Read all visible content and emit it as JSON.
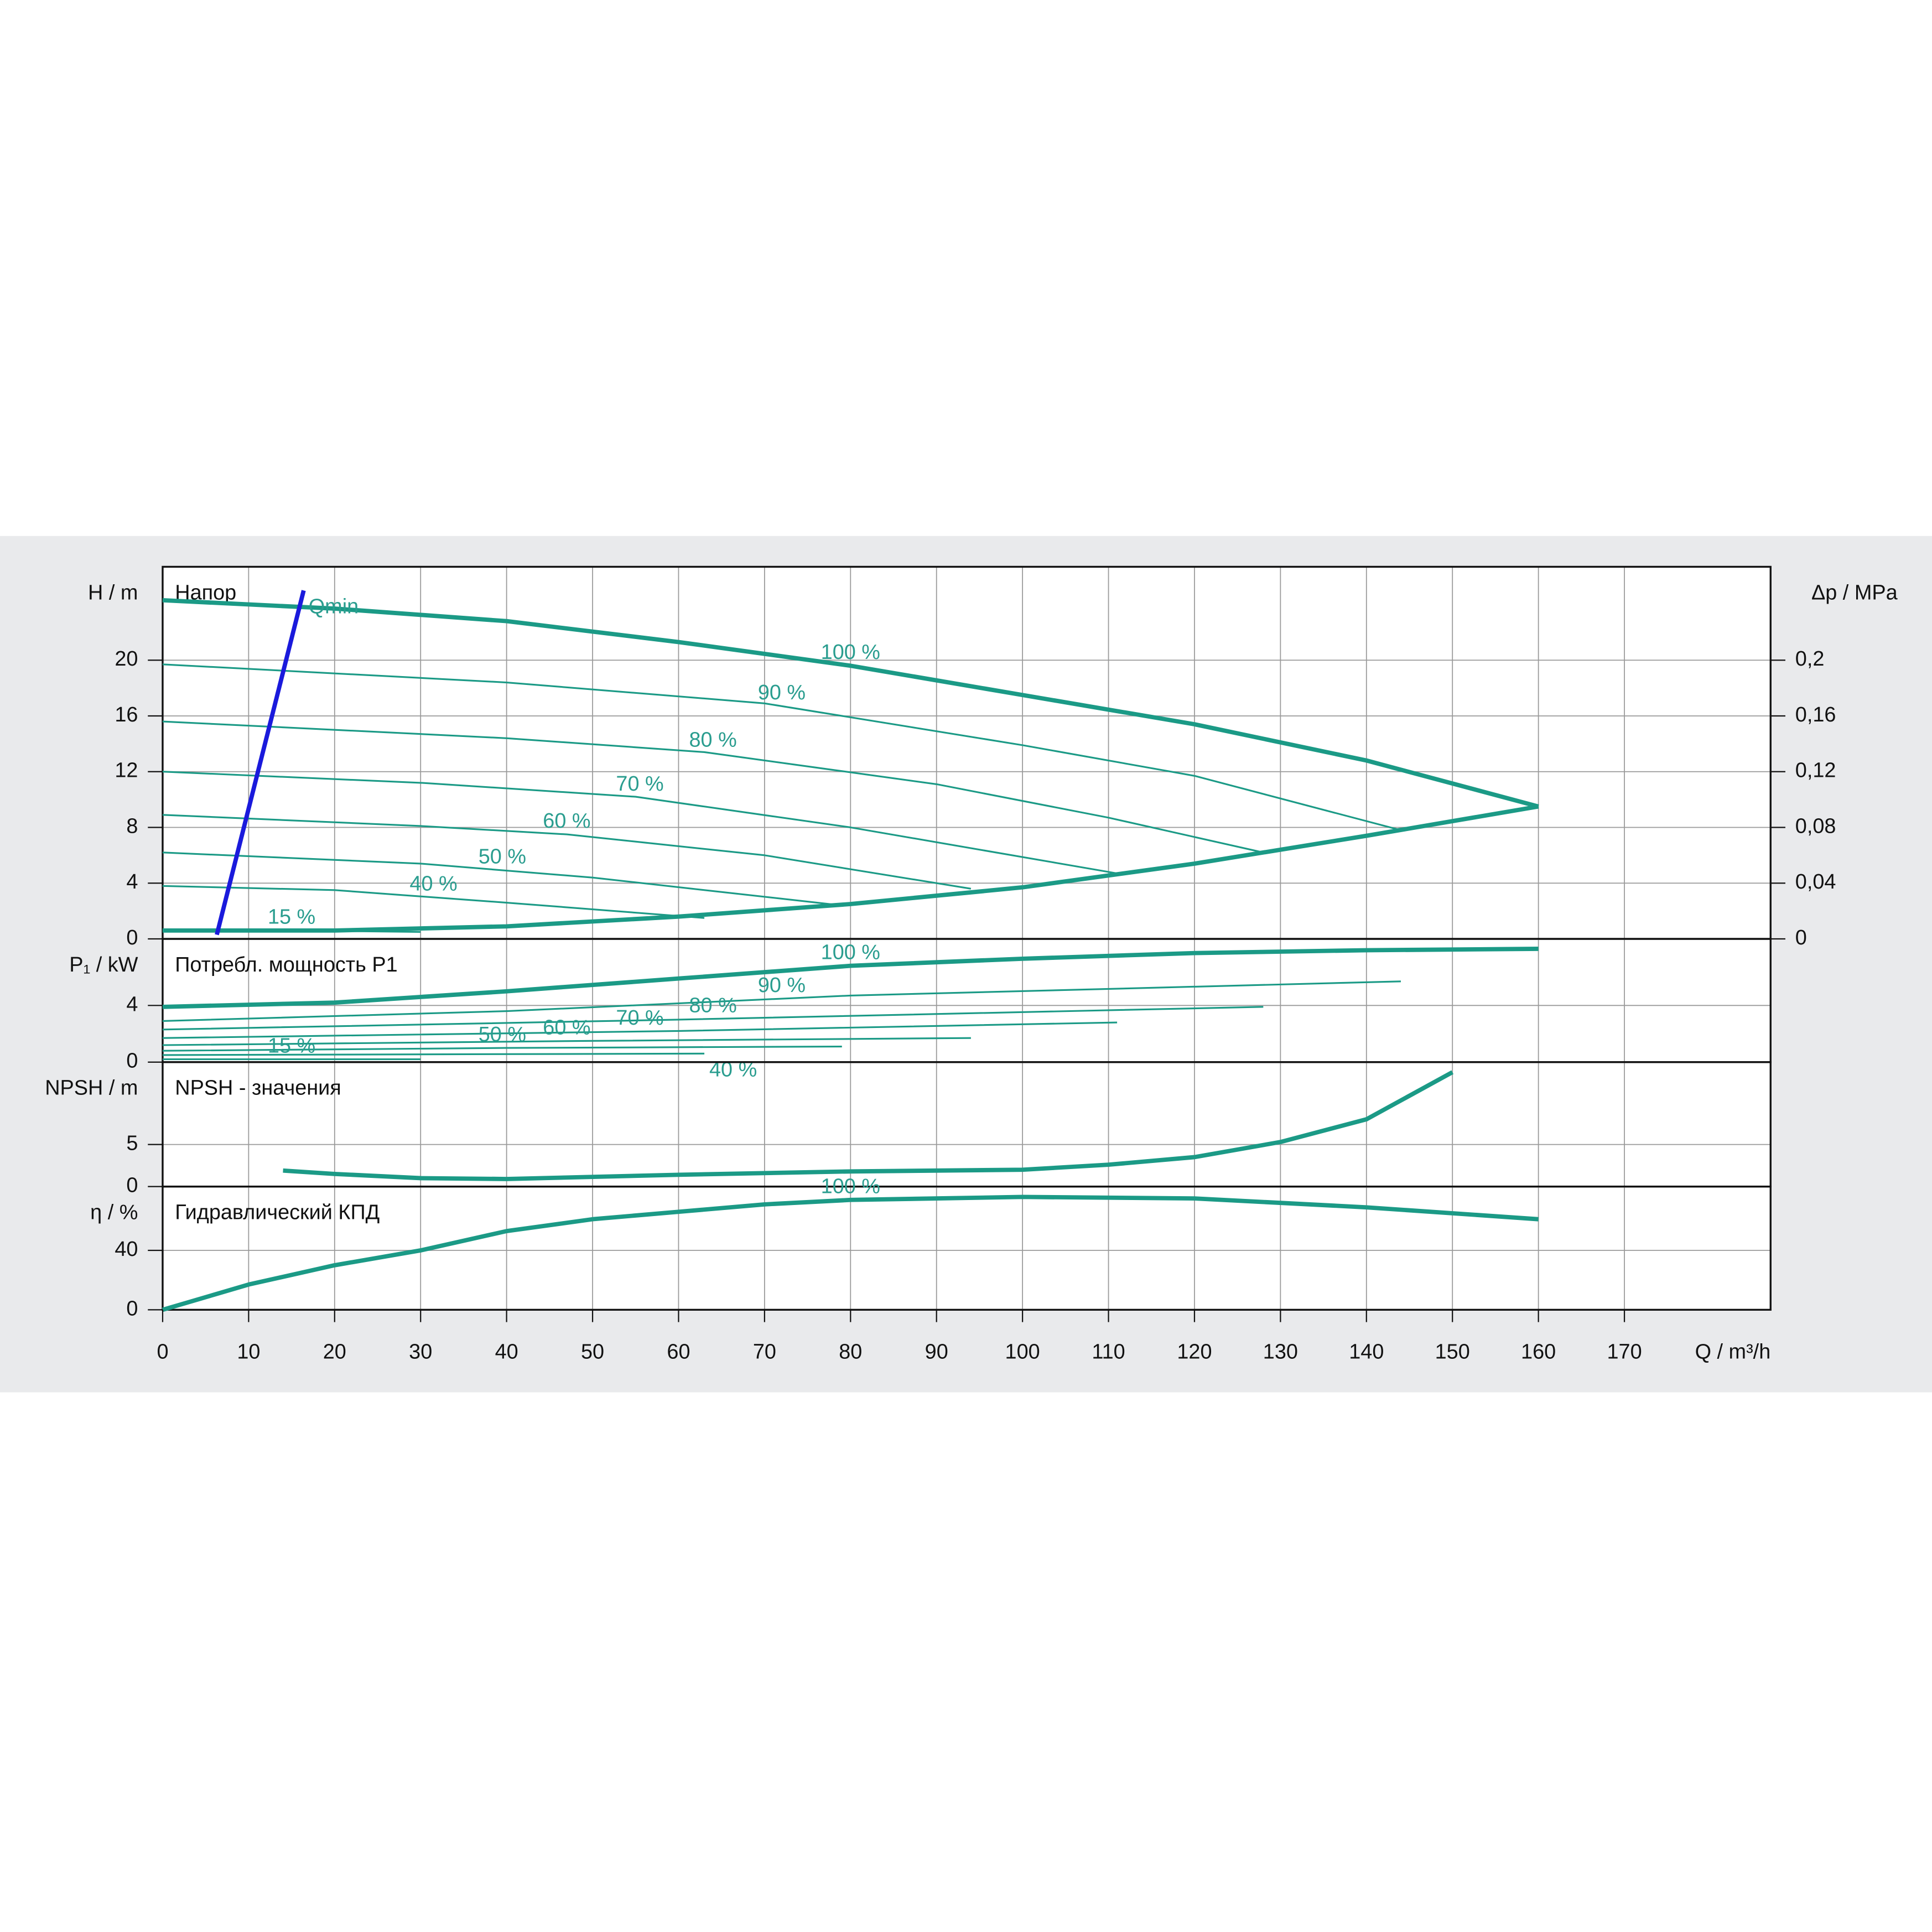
{
  "chart_data": [
    {
      "type": "line",
      "title": "Напор",
      "ylabel": "H / m",
      "y2label": "Δp / MPa",
      "ylim": [
        0,
        26.7
      ],
      "yticks": [
        0,
        4,
        8,
        12,
        16,
        20
      ],
      "y2lim": [
        0,
        0.267
      ],
      "y2ticks": [
        0,
        {
          "value": 0.04,
          "label": "0,04"
        },
        {
          "value": 0.08,
          "label": "0,08"
        },
        {
          "value": 0.12,
          "label": "0,12"
        },
        {
          "value": 0.16,
          "label": "0,16"
        },
        {
          "value": 0.2,
          "label": "0,2"
        }
      ],
      "grid": true,
      "series": [
        {
          "name": "100 %",
          "color": "#1b9a86",
          "style": "bold",
          "x": [
            0,
            20,
            40,
            60,
            80,
            100,
            120,
            140,
            160
          ],
          "values": [
            24.3,
            23.7,
            22.8,
            21.3,
            19.6,
            17.5,
            15.4,
            12.8,
            9.5
          ]
        },
        {
          "name": "90 %",
          "color": "#1b9a86",
          "x": [
            0,
            40,
            70,
            100,
            120,
            144
          ],
          "values": [
            19.7,
            18.4,
            16.9,
            13.9,
            11.7,
            7.8
          ]
        },
        {
          "name": "80 %",
          "color": "#1b9a86",
          "x": [
            0,
            40,
            63,
            90,
            110,
            128
          ],
          "values": [
            15.6,
            14.4,
            13.4,
            11.1,
            8.7,
            6.2
          ]
        },
        {
          "name": "70 %",
          "color": "#1b9a86",
          "x": [
            0,
            30,
            55,
            80,
            111
          ],
          "values": [
            12.0,
            11.2,
            10.2,
            8.0,
            4.7
          ]
        },
        {
          "name": "60 %",
          "color": "#1b9a86",
          "x": [
            0,
            30,
            47,
            70,
            94
          ],
          "values": [
            8.9,
            8.1,
            7.5,
            6.0,
            3.6
          ]
        },
        {
          "name": "50 %",
          "color": "#1b9a86",
          "x": [
            0,
            30,
            50,
            79
          ],
          "values": [
            6.2,
            5.4,
            4.4,
            2.4
          ]
        },
        {
          "name": "40 %",
          "color": "#1b9a86",
          "x": [
            0,
            20,
            40,
            63
          ],
          "values": [
            3.8,
            3.5,
            2.6,
            1.5
          ]
        },
        {
          "name": "15 %",
          "color": "#1b9a86",
          "x": [
            0,
            15,
            30
          ],
          "values": [
            0.6,
            0.6,
            0.5
          ]
        },
        {
          "color": "#1b9a86",
          "style": "bold",
          "x": [
            0,
            20,
            40,
            60,
            80,
            100,
            120,
            140,
            160
          ],
          "values": [
            0.6,
            0.6,
            0.9,
            1.6,
            2.5,
            3.7,
            5.4,
            7.4,
            9.5
          ]
        },
        {
          "name": "Qmin",
          "color": "#1a1adc",
          "style": "bold",
          "x": [
            6.3,
            16.4
          ],
          "values": [
            0.3,
            25.0
          ]
        }
      ]
    },
    {
      "type": "line",
      "title": "Потребл. мощность P1",
      "ylabel": "P₁ / kW",
      "ylim": [
        0,
        8.7
      ],
      "yticks": [
        0,
        4
      ],
      "grid": true,
      "series": [
        {
          "name": "100 %",
          "color": "#1b9a86",
          "style": "bold",
          "x": [
            0,
            20,
            40,
            60,
            80,
            100,
            120,
            140,
            160
          ],
          "values": [
            3.9,
            4.2,
            5.0,
            5.9,
            6.8,
            7.3,
            7.7,
            7.9,
            8.0
          ]
        },
        {
          "name": "90 %",
          "color": "#1b9a86",
          "x": [
            0,
            40,
            80,
            144
          ],
          "values": [
            2.9,
            3.6,
            4.7,
            5.7
          ]
        },
        {
          "name": "80 %",
          "color": "#1b9a86",
          "x": [
            0,
            60,
            128
          ],
          "values": [
            2.3,
            3.0,
            3.9
          ]
        },
        {
          "name": "70 %",
          "color": "#1b9a86",
          "x": [
            0,
            60,
            111
          ],
          "values": [
            1.7,
            2.2,
            2.8
          ]
        },
        {
          "name": "60 %",
          "color": "#1b9a86",
          "x": [
            0,
            50,
            94
          ],
          "values": [
            1.2,
            1.5,
            1.7
          ]
        },
        {
          "name": "50 %",
          "color": "#1b9a86",
          "x": [
            0,
            40,
            79
          ],
          "values": [
            0.8,
            1.0,
            1.1
          ]
        },
        {
          "name": "40 %",
          "color": "#1b9a86",
          "x": [
            0,
            63
          ],
          "values": [
            0.5,
            0.6
          ]
        },
        {
          "name": "15 %",
          "color": "#1b9a86",
          "x": [
            0,
            15,
            30
          ],
          "values": [
            0.2,
            0.2,
            0.2
          ]
        }
      ]
    },
    {
      "type": "line",
      "title": "NPSH - значения",
      "ylabel": "NPSH / m",
      "ylim": [
        0,
        14.8
      ],
      "yticks": [
        0,
        5
      ],
      "grid": true,
      "series": [
        {
          "color": "#1b9a86",
          "style": "bold",
          "x": [
            14,
            20,
            30,
            40,
            60,
            80,
            100,
            110,
            120,
            130,
            140,
            150
          ],
          "values": [
            1.9,
            1.5,
            1.0,
            0.9,
            1.4,
            1.8,
            2.0,
            2.6,
            3.5,
            5.3,
            8.0,
            13.6
          ]
        }
      ]
    },
    {
      "type": "line",
      "title": "Гидравлический КПД",
      "ylabel": "η / %",
      "xlabel": "Q / m³/h",
      "ylim": [
        0,
        83
      ],
      "yticks": [
        0,
        40
      ],
      "grid": true,
      "xlim": [
        0,
        187
      ],
      "xticks": [
        0,
        10,
        20,
        30,
        40,
        50,
        60,
        70,
        80,
        90,
        100,
        110,
        120,
        130,
        140,
        150,
        160,
        170
      ],
      "series": [
        {
          "name": "100 %",
          "color": "#1b9a86",
          "style": "bold",
          "x": [
            0,
            10,
            20,
            30,
            40,
            50,
            60,
            70,
            80,
            100,
            120,
            140,
            160
          ],
          "values": [
            0,
            17,
            30,
            40,
            53,
            61,
            66,
            71,
            74,
            76,
            75,
            69,
            61
          ]
        }
      ]
    }
  ]
}
